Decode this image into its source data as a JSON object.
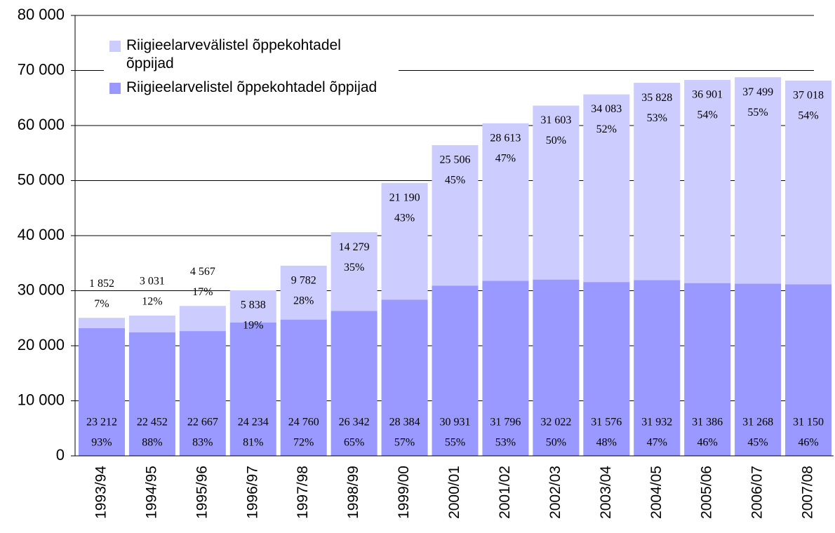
{
  "chart_data": {
    "type": "stacked_bar",
    "categories": [
      "1993/94",
      "1994/95",
      "1995/96",
      "1996/97",
      "1997/98",
      "1998/99",
      "1999/00",
      "2000/01",
      "2001/02",
      "2002/03",
      "2003/04",
      "2004/05",
      "2005/06",
      "2006/07",
      "2007/08"
    ],
    "series": [
      {
        "name": "Riigieelarvevälistel õppekohtadel õppijad",
        "color": "#ccccff",
        "values": [
          1852,
          3031,
          4567,
          5838,
          9782,
          14279,
          21190,
          25506,
          28613,
          31603,
          34083,
          35828,
          36901,
          37499,
          37018
        ],
        "value_labels": [
          "1 852",
          "3 031",
          "4 567",
          "5 838",
          "9 782",
          "14 279",
          "21 190",
          "25 506",
          "28 613",
          "31 603",
          "34 083",
          "35 828",
          "36 901",
          "37 499",
          "37 018"
        ],
        "share_labels": [
          "7%",
          "12%",
          "17%",
          "19%",
          "28%",
          "35%",
          "43%",
          "45%",
          "47%",
          "50%",
          "52%",
          "53%",
          "54%",
          "55%",
          "54%"
        ]
      },
      {
        "name": "Riigieelarvelistel õppekohtadel õppijad",
        "color": "#9999ff",
        "values": [
          23212,
          22452,
          22667,
          24234,
          24760,
          26342,
          28384,
          30931,
          31796,
          32022,
          31576,
          31932,
          31386,
          31268,
          31150
        ],
        "value_labels": [
          "23 212",
          "22 452",
          "22 667",
          "24 234",
          "24 760",
          "26 342",
          "28 384",
          "30 931",
          "31 796",
          "32 022",
          "31 576",
          "31 932",
          "31 386",
          "31 268",
          "31 150"
        ],
        "share_labels": [
          "93%",
          "88%",
          "83%",
          "81%",
          "72%",
          "65%",
          "57%",
          "55%",
          "53%",
          "50%",
          "48%",
          "47%",
          "46%",
          "45%",
          "46%"
        ]
      }
    ],
    "ylim": [
      0,
      80000
    ],
    "yticks": [
      0,
      {
        "value": 10000,
        "label": "10 000"
      },
      {
        "value": 20000,
        "label": "20 000"
      },
      {
        "value": 30000,
        "label": "30 000"
      },
      {
        "value": 40000,
        "label": "40 000"
      },
      {
        "value": 50000,
        "label": "50 000"
      },
      {
        "value": 60000,
        "label": "60 000"
      },
      {
        "value": 70000,
        "label": "70 000"
      },
      {
        "value": 80000,
        "label": "80 000"
      }
    ],
    "grid": true,
    "legend": "top-left"
  }
}
